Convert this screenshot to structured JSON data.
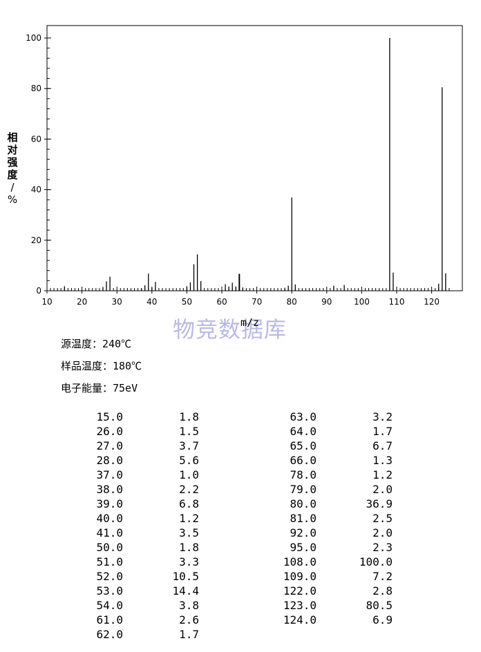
{
  "chart_data": {
    "type": "bar",
    "x": [
      15,
      26,
      27,
      28,
      37,
      38,
      39,
      40,
      41,
      50,
      51,
      52,
      53,
      54,
      61,
      62,
      63,
      64,
      65,
      66,
      78,
      79,
      80,
      81,
      92,
      95,
      108,
      109,
      122,
      123,
      124
    ],
    "values": [
      1.8,
      1.5,
      3.7,
      5.6,
      1.0,
      2.2,
      6.8,
      1.2,
      3.5,
      1.8,
      3.3,
      10.5,
      14.4,
      3.8,
      2.6,
      1.7,
      3.2,
      1.7,
      6.7,
      1.3,
      1.2,
      2.0,
      36.9,
      2.5,
      2.0,
      2.3,
      100.0,
      7.2,
      2.8,
      80.5,
      6.9
    ],
    "xlim": [
      10,
      127
    ],
    "ylim": [
      0,
      100
    ],
    "xticks": [
      "10",
      "20",
      "30",
      "40",
      "50",
      "60",
      "70",
      "80",
      "90",
      "100",
      "110",
      "120"
    ],
    "yticks": [
      "0",
      "20",
      "40",
      "60",
      "80",
      "100"
    ],
    "xlabel": "m/z",
    "ylabel": [
      "相",
      "对",
      "强",
      "度",
      "/",
      "%"
    ],
    "grid": false
  },
  "watermark": "物竞数据库",
  "conditions": {
    "source_temp": "源温度：240℃",
    "sample_temp": "样品温度：180℃",
    "electron_energy": "电子能量：75eV"
  },
  "peak_table": [
    [
      "15.0",
      "1.8",
      "63.0",
      "3.2"
    ],
    [
      "26.0",
      "1.5",
      "64.0",
      "1.7"
    ],
    [
      "27.0",
      "3.7",
      "65.0",
      "6.7"
    ],
    [
      "28.0",
      "5.6",
      "66.0",
      "1.3"
    ],
    [
      "37.0",
      "1.0",
      "78.0",
      "1.2"
    ],
    [
      "38.0",
      "2.2",
      "79.0",
      "2.0"
    ],
    [
      "39.0",
      "6.8",
      "80.0",
      "36.9"
    ],
    [
      "40.0",
      "1.2",
      "81.0",
      "2.5"
    ],
    [
      "41.0",
      "3.5",
      "92.0",
      "2.0"
    ],
    [
      "50.0",
      "1.8",
      "95.0",
      "2.3"
    ],
    [
      "51.0",
      "3.3",
      "108.0",
      "100.0"
    ],
    [
      "52.0",
      "10.5",
      "109.0",
      "7.2"
    ],
    [
      "53.0",
      "14.4",
      "122.0",
      "2.8"
    ],
    [
      "54.0",
      "3.8",
      "123.0",
      "80.5"
    ],
    [
      "61.0",
      "2.6",
      "124.0",
      "6.9"
    ],
    [
      "62.0",
      "1.7",
      "",
      ""
    ]
  ]
}
